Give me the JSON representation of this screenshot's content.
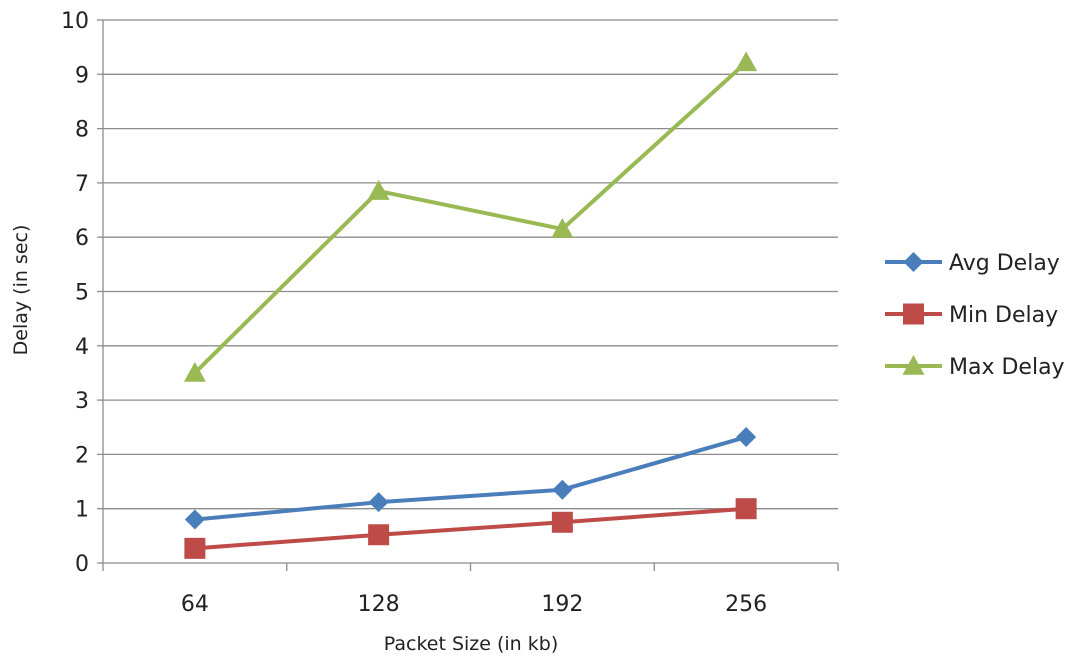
{
  "chart_data": {
    "type": "line",
    "title": "",
    "xlabel": "Packet Size (in kb)",
    "ylabel": "Delay (in sec)",
    "categories": [
      "64",
      "128",
      "192",
      "256"
    ],
    "ylim": [
      0,
      10
    ],
    "yticks": [
      "0",
      "1",
      "2",
      "3",
      "4",
      "5",
      "6",
      "7",
      "8",
      "9",
      "10"
    ],
    "grid": true,
    "legend_position": "right",
    "series": [
      {
        "name": "Avg Delay",
        "values": [
          0.8,
          1.12,
          1.35,
          2.32
        ],
        "color": "#4a7ebb",
        "marker": "diamond"
      },
      {
        "name": "Min Delay",
        "values": [
          0.27,
          0.52,
          0.75,
          1.0
        ],
        "color": "#be4b48",
        "marker": "square"
      },
      {
        "name": "Max Delay",
        "values": [
          3.5,
          6.85,
          6.15,
          9.22
        ],
        "color": "#98b954",
        "marker": "triangle"
      }
    ]
  }
}
